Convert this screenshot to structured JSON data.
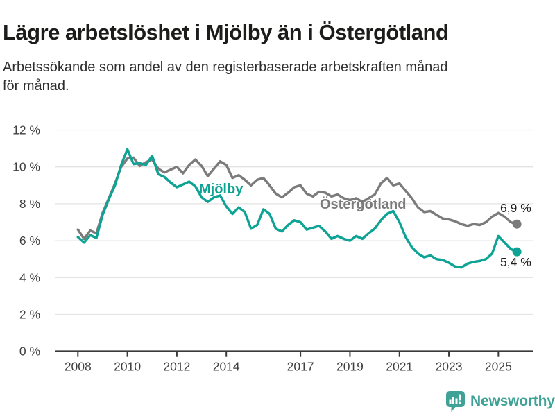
{
  "title": "Lägre arbetslöshet i Mjölby än i Östergötland",
  "subtitle": {
    "line1": "Arbetssökande som andel av den registerbaserade arbetskraften månad",
    "line2": "för månad."
  },
  "footer": {
    "brand": "Newsworthy",
    "logo_icon": "newsworthy-chart-bubble"
  },
  "colors": {
    "mjolby": "#0ea394",
    "ostergotland": "#7b7b7b",
    "grid": "#e3e3e3",
    "axis": "#3a3a3a",
    "tick_text": "#3f3f3f",
    "brand_teal": "#3ea296"
  },
  "chart_data": {
    "type": "line",
    "title": "Lägre arbetslöshet i Mjölby än i Östergötland",
    "subtitle": "Arbetssökande som andel av den registerbaserade arbetskraften månad för månad.",
    "xlabel": "",
    "ylabel": "",
    "unit": "%",
    "grid": "horizontal",
    "legend_position": "inline-labels",
    "x_start": 2008.0,
    "x_step_years": 0.25,
    "x_end": 2025.75,
    "xlim": [
      2007.1,
      2026.4
    ],
    "ylim": [
      0,
      12.4
    ],
    "y_ticks": {
      "values": [
        0,
        2,
        4,
        6,
        8,
        10,
        12
      ],
      "labels": [
        "0 %",
        "2 %",
        "4 %",
        "6 %",
        "8 %",
        "10 %",
        "12 %"
      ]
    },
    "x_ticks": {
      "values": [
        2008,
        2010,
        2012,
        2014,
        2017,
        2019,
        2021,
        2023,
        2025
      ],
      "labels": [
        "2008",
        "2010",
        "2012",
        "2014",
        "2017",
        "2019",
        "2021",
        "2023",
        "2025"
      ]
    },
    "series": [
      {
        "name": "Mjölby",
        "color": "#0ea394",
        "end_label": "5,4 %",
        "end_value": 5.4,
        "values": [
          6.2,
          5.9,
          6.3,
          6.15,
          7.4,
          8.25,
          9.0,
          10.1,
          10.95,
          10.15,
          10.2,
          10.1,
          10.6,
          9.6,
          9.45,
          9.15,
          8.9,
          9.05,
          9.2,
          8.95,
          8.35,
          8.1,
          8.35,
          8.45,
          7.85,
          7.45,
          7.8,
          7.55,
          6.65,
          6.85,
          7.7,
          7.45,
          6.65,
          6.5,
          6.85,
          7.1,
          7.0,
          6.6,
          6.7,
          6.8,
          6.5,
          6.1,
          6.25,
          6.1,
          6.0,
          6.25,
          6.1,
          6.4,
          6.65,
          7.1,
          7.45,
          7.6,
          7.0,
          6.2,
          5.65,
          5.3,
          5.1,
          5.2,
          5.0,
          4.95,
          4.8,
          4.6,
          4.55,
          4.75,
          4.85,
          4.9,
          5.0,
          5.3,
          6.25,
          5.9,
          5.55,
          5.4
        ]
      },
      {
        "name": "Östergötland",
        "color": "#7b7b7b",
        "end_label": "6,9 %",
        "end_value": 6.9,
        "values": [
          6.6,
          6.1,
          6.55,
          6.4,
          7.5,
          8.3,
          9.1,
          10.0,
          10.45,
          10.5,
          10.05,
          10.25,
          10.4,
          9.9,
          9.7,
          9.85,
          10.0,
          9.65,
          10.1,
          10.4,
          10.05,
          9.5,
          9.9,
          10.3,
          10.1,
          9.4,
          9.55,
          9.3,
          9.0,
          9.3,
          9.4,
          9.0,
          8.55,
          8.35,
          8.6,
          8.9,
          9.0,
          8.55,
          8.4,
          8.65,
          8.6,
          8.4,
          8.5,
          8.3,
          8.2,
          8.3,
          8.1,
          8.3,
          8.5,
          9.1,
          9.4,
          9.0,
          9.1,
          8.7,
          8.3,
          7.8,
          7.55,
          7.6,
          7.4,
          7.2,
          7.15,
          7.05,
          6.9,
          6.8,
          6.9,
          6.85,
          7.0,
          7.3,
          7.5,
          7.3,
          7.0,
          6.9
        ]
      }
    ]
  }
}
